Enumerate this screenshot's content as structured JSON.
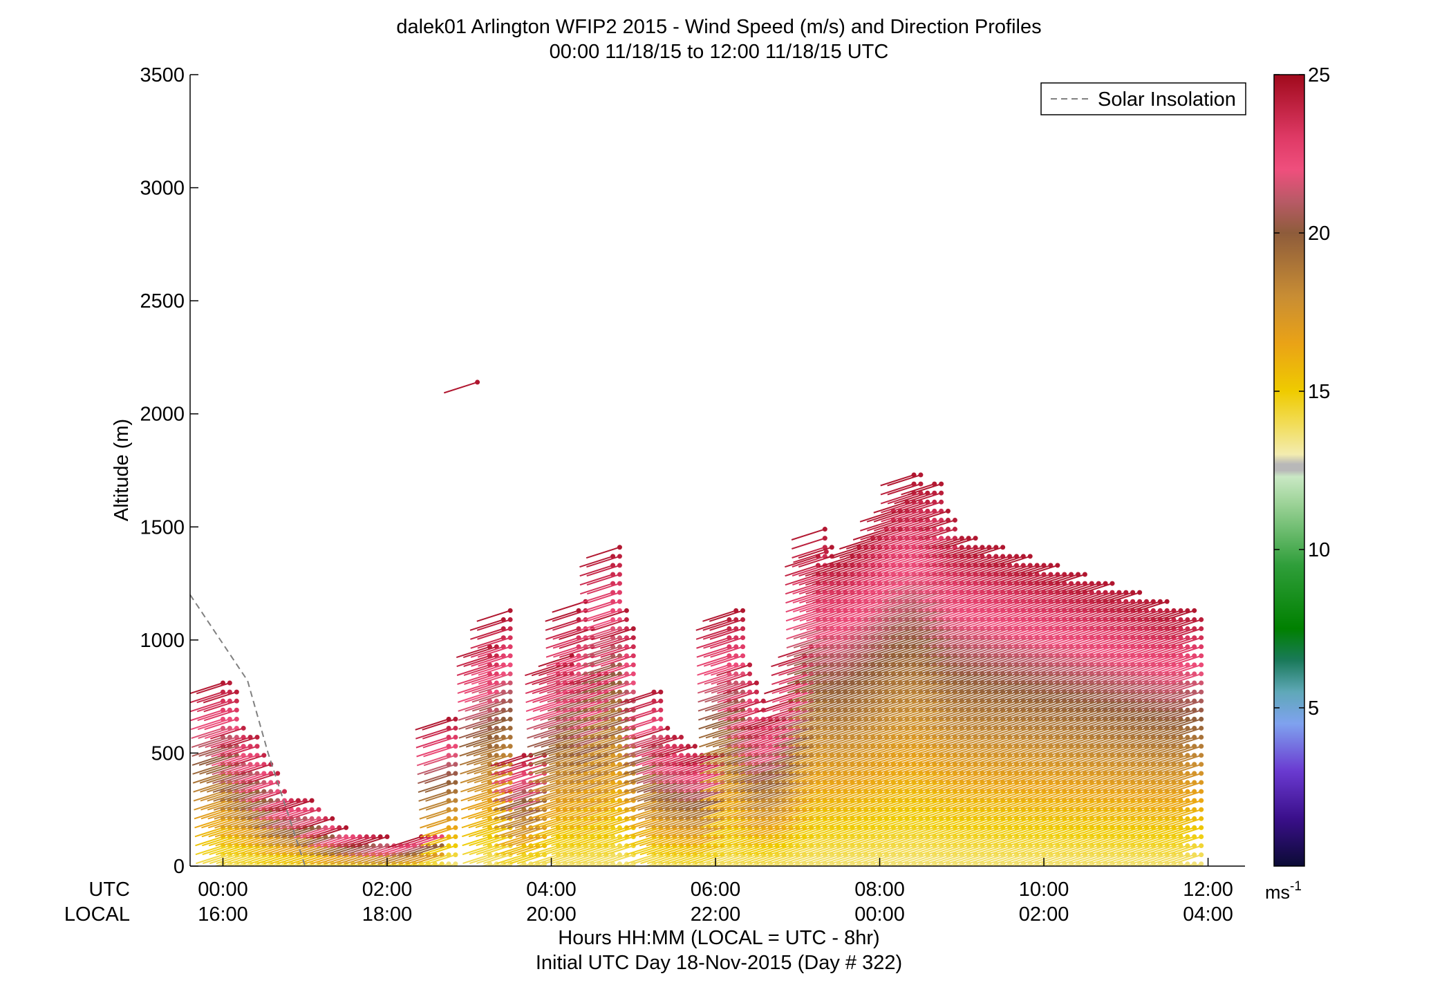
{
  "chart_data": {
    "type": "wind-barb profile",
    "title": "dalek01 Arlington WFIP2 2015 - Wind Speed (m/s) and Direction Profiles",
    "subtitle": "00:00 11/18/15 to 12:00 11/18/15  UTC",
    "ylabel": "Altitude (m)",
    "xlabel": "Hours HH:MM  (LOCAL = UTC - 8hr)",
    "xlabel2": "Initial UTC Day 18-Nov-2015 (Day # 322)",
    "xrow_labels": [
      "UTC",
      "LOCAL"
    ],
    "xlim_hours": [
      -0.4,
      12.45
    ],
    "ylim": [
      0,
      3500
    ],
    "yticks": [
      0,
      500,
      1000,
      1500,
      2000,
      2500,
      3000,
      3500
    ],
    "xticks_utc": [
      "00:00",
      "02:00",
      "04:00",
      "06:00",
      "08:00",
      "10:00",
      "12:00"
    ],
    "xticks_local": [
      "16:00",
      "18:00",
      "20:00",
      "22:00",
      "00:00",
      "02:00",
      "04:00"
    ],
    "xticks_hours": [
      0,
      2,
      4,
      6,
      8,
      10,
      12
    ],
    "legend": {
      "entries": [
        "Solar Insolation"
      ],
      "placement": "top-right"
    },
    "solar_insolation": {
      "x": [
        -0.4,
        0.3,
        0.55,
        1.0
      ],
      "y": [
        1200,
        820,
        500,
        0
      ],
      "style": "dashed",
      "color": "#808080"
    },
    "colorbar": {
      "range": [
        0,
        25
      ],
      "ticks": [
        5,
        10,
        15,
        20,
        25
      ],
      "unit": "ms",
      "unit_exp": "-1",
      "stops": [
        {
          "v": 0,
          "c": "#0b0b35"
        },
        {
          "v": 1.5,
          "c": "#3a0f8a"
        },
        {
          "v": 3,
          "c": "#6a3ad0"
        },
        {
          "v": 4.5,
          "c": "#7fa2ef"
        },
        {
          "v": 5.5,
          "c": "#5fa8b8"
        },
        {
          "v": 6.5,
          "c": "#1a7a5a"
        },
        {
          "v": 7.5,
          "c": "#008000"
        },
        {
          "v": 9.5,
          "c": "#2f9e3a"
        },
        {
          "v": 11.5,
          "c": "#9fd49a"
        },
        {
          "v": 12.3,
          "c": "#c9e8c4"
        },
        {
          "v": 12.5,
          "c": "#b8b8b8"
        },
        {
          "v": 12.7,
          "c": "#b8b8b8"
        },
        {
          "v": 13,
          "c": "#f3ecb0"
        },
        {
          "v": 14,
          "c": "#f2dc55"
        },
        {
          "v": 15,
          "c": "#efcb00"
        },
        {
          "v": 16.5,
          "c": "#eaa316"
        },
        {
          "v": 18,
          "c": "#c88d34"
        },
        {
          "v": 20,
          "c": "#8e5c3b"
        },
        {
          "v": 21,
          "c": "#b85a66"
        },
        {
          "v": 22,
          "c": "#ef4f7d"
        },
        {
          "v": 23,
          "c": "#df3a66"
        },
        {
          "v": 25,
          "c": "#a00a1c"
        }
      ]
    },
    "profile_times_hours": [
      0,
      0.083,
      0.167,
      0.25,
      0.333,
      0.417,
      0.5,
      0.583,
      0.667,
      0.75,
      0.833,
      0.917,
      1.0,
      1.083,
      1.167,
      1.25,
      1.333,
      1.417,
      1.5,
      1.583,
      1.667,
      1.75,
      1.833,
      1.917,
      2.0,
      2.083,
      2.167,
      2.25,
      2.333,
      2.417,
      2.5,
      2.583,
      2.667,
      2.75,
      2.833,
      2.917,
      3.0,
      3.083,
      3.167,
      3.25,
      3.333,
      3.417,
      3.5,
      3.583,
      3.667,
      3.75,
      3.833,
      3.917,
      4.0,
      4.083,
      4.167,
      4.25,
      4.333,
      4.417,
      4.5,
      4.583,
      4.667,
      4.75,
      4.833,
      4.917,
      5.0,
      5.083,
      5.167,
      5.25,
      5.333,
      5.417,
      5.5,
      5.583,
      5.667,
      5.75,
      5.833,
      5.917,
      6.0,
      6.083,
      6.167,
      6.25,
      6.333,
      6.417,
      6.5,
      6.583,
      6.667,
      6.75,
      6.833,
      6.917,
      7.0,
      7.083,
      7.167,
      7.25,
      7.333,
      7.417,
      7.5,
      7.583,
      7.667,
      7.75,
      7.833,
      7.917,
      8.0,
      8.083,
      8.167,
      8.25,
      8.333,
      8.417,
      8.5,
      8.583,
      8.667,
      8.75,
      8.833,
      8.917,
      9.0,
      9.083,
      9.167,
      9.25,
      9.333,
      9.417,
      9.5,
      9.583,
      9.667,
      9.75,
      9.833,
      9.917,
      10.0,
      10.083,
      10.167,
      10.25,
      10.333,
      10.417,
      10.5,
      10.583,
      10.667,
      10.75,
      10.833,
      10.917,
      11.0,
      11.083,
      11.167,
      11.25,
      11.333,
      11.417,
      11.5,
      11.583,
      11.667,
      11.75,
      11.833,
      11.917
    ],
    "profile_top_altitudes_m": [
      820,
      830,
      790,
      640,
      600,
      590,
      520,
      470,
      430,
      360,
      320,
      300,
      310,
      290,
      280,
      230,
      210,
      180,
      170,
      160,
      150,
      140,
      140,
      130,
      130,
      120,
      120,
      110,
      120,
      130,
      140,
      150,
      160,
      650,
      660,
      0,
      0,
      0,
      0,
      990,
      1000,
      1100,
      1130,
      0,
      500,
      490,
      400,
      510,
      0,
      920,
      900,
      930,
      1130,
      1170,
      1050,
      880,
      870,
      1400,
      1420,
      1140,
      1060,
      0,
      0,
      790,
      780,
      620,
      590,
      590,
      550,
      540,
      520,
      500,
      490,
      500,
      1120,
      1140,
      1130,
      920,
      830,
      760,
      670,
      660,
      650,
      740,
      810,
      950,
      1000,
      1400,
      1500,
      1420,
      1350,
      1340,
      1370,
      1410,
      1420,
      1450,
      1470,
      1500,
      1580,
      1600,
      1620,
      1730,
      1740,
      1680,
      1710,
      1700,
      1580,
      1560,
      1470,
      1460,
      1450,
      1440,
      1430,
      1420,
      1410,
      1400,
      1390,
      1380,
      1370,
      1360,
      1350,
      1340,
      1330,
      1320,
      1310,
      1300,
      1290,
      1280,
      1270,
      1260,
      1250,
      1240,
      1230,
      1220,
      1210,
      1200,
      1190,
      1180,
      1170,
      1160,
      1150,
      1140,
      1130,
      1120
    ],
    "isolated_barbs": [
      {
        "hour": 3.1,
        "alt_m": 2140,
        "speed_ms": 24.5
      },
      {
        "hour": 7.35,
        "alt_m": 1390,
        "speed_ms": 24
      },
      {
        "hour": 8.25,
        "alt_m": 1490,
        "speed_ms": 24
      }
    ],
    "barb_style": "line from point toward west-northwest; dot marks observation"
  }
}
